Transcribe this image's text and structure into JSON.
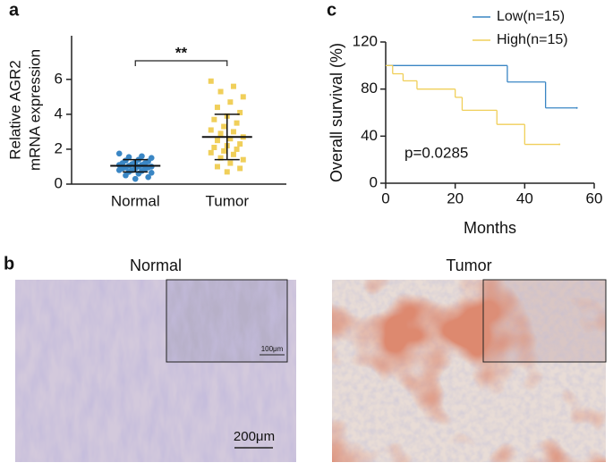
{
  "panel_labels": {
    "a": "a",
    "b": "b",
    "c": "c"
  },
  "chart_data": [
    {
      "type": "dot",
      "y_label": [
        "Relative AGR2",
        "mRNA expression"
      ],
      "categories": [
        "Normal",
        "Tumor"
      ],
      "colors": [
        "#3a86c4",
        "#f0cf5a"
      ],
      "values": [
        [
          1.75,
          1.6,
          1.55,
          1.5,
          1.4,
          1.35,
          1.3,
          1.25,
          1.2,
          1.2,
          1.15,
          1.1,
          1.1,
          1.05,
          1.0,
          1.0,
          0.95,
          0.95,
          0.9,
          0.9,
          0.85,
          0.8,
          0.8,
          0.75,
          0.7,
          0.65,
          0.6,
          0.5,
          0.4,
          0.3
        ],
        [
          5.9,
          5.6,
          5.3,
          5.0,
          4.7,
          4.4,
          4.1,
          3.9,
          3.7,
          3.5,
          3.3,
          3.1,
          3.0,
          2.9,
          2.7,
          2.6,
          2.5,
          2.3,
          2.2,
          2.1,
          2.0,
          1.9,
          1.8,
          1.7,
          1.5,
          1.4,
          1.2,
          1.0,
          0.9,
          0.7
        ]
      ],
      "mean": [
        1.05,
        2.7
      ],
      "sd": [
        0.35,
        1.3
      ],
      "significance": "**",
      "ylim": [
        0,
        8.5
      ],
      "yticks": [
        0,
        2,
        4,
        6
      ]
    },
    {
      "type": "step",
      "x_label": "Months",
      "y_label": "Overall survival (%)",
      "series": [
        {
          "name": "Low(n=15)",
          "color": "#3a86c4",
          "x": [
            0,
            35,
            46,
            55
          ],
          "values": [
            100,
            86,
            64,
            64
          ]
        },
        {
          "name": "High(n=15)",
          "color": "#f0cf5a",
          "x": [
            0,
            2,
            5,
            9,
            20,
            22,
            32,
            40,
            50
          ],
          "values": [
            100,
            93,
            87,
            80,
            73,
            62,
            50,
            33,
            33
          ]
        }
      ],
      "annotation": "p=0.0285",
      "xlim": [
        0,
        60
      ],
      "xticks": [
        0,
        20,
        40,
        60
      ],
      "ylim": [
        0,
        120
      ],
      "yticks": [
        0,
        40,
        80,
        120
      ]
    }
  ],
  "micrographs": [
    {
      "title": "Normal",
      "scale_bar": "200μm",
      "inset_scale_bar": "100μm"
    },
    {
      "title": "Tumor"
    }
  ]
}
